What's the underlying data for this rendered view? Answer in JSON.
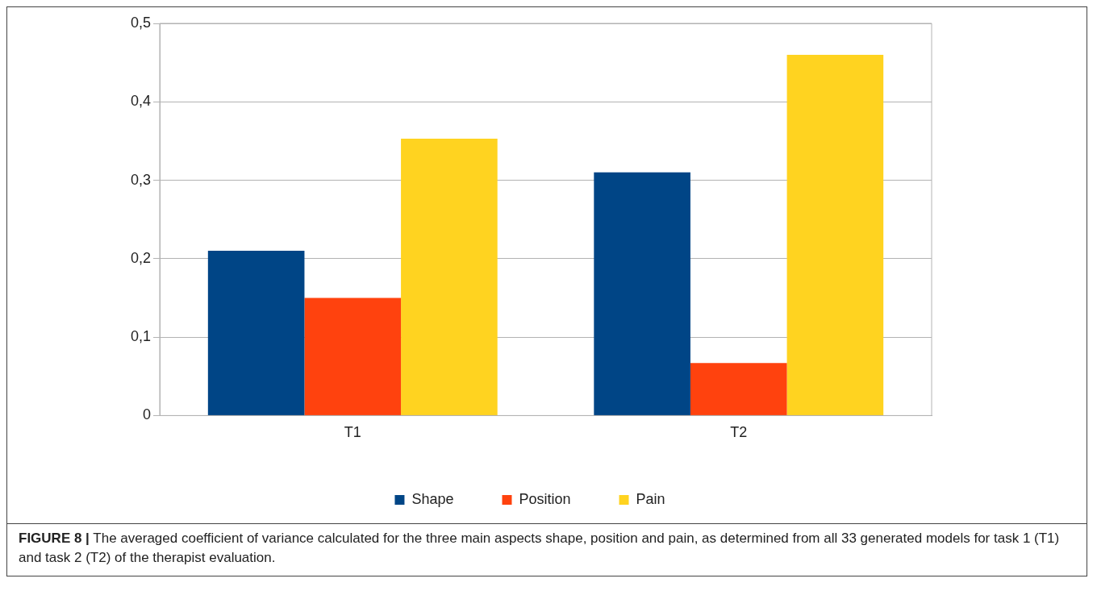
{
  "chart_data": {
    "type": "bar",
    "categories": [
      "T1",
      "T2"
    ],
    "series": [
      {
        "name": "Shape",
        "color": "#004586",
        "values": [
          0.21,
          0.31
        ]
      },
      {
        "name": "Position",
        "color": "#ff420e",
        "values": [
          0.15,
          0.067
        ]
      },
      {
        "name": "Pain",
        "color": "#ffd320",
        "values": [
          0.353,
          0.46
        ]
      }
    ],
    "ylim": [
      0,
      0.5
    ],
    "yticks": [
      0,
      {
        "value": 0.1,
        "label": "0,1"
      },
      {
        "value": 0.2,
        "label": "0,2"
      },
      {
        "value": 0.3,
        "label": "0,3"
      },
      {
        "value": 0.4,
        "label": "0,4"
      },
      {
        "value": 0.5,
        "label": "0,5"
      }
    ],
    "grid": "y",
    "legend": "bottom",
    "annotations": [
      "FIGURE 8 | The averaged coefficient of variance calculated for the three main aspects shape, position and pain, as determined from all 33 generated models for task 1 (T1) and task 2 (T2) of the therapist evaluation."
    ]
  }
}
